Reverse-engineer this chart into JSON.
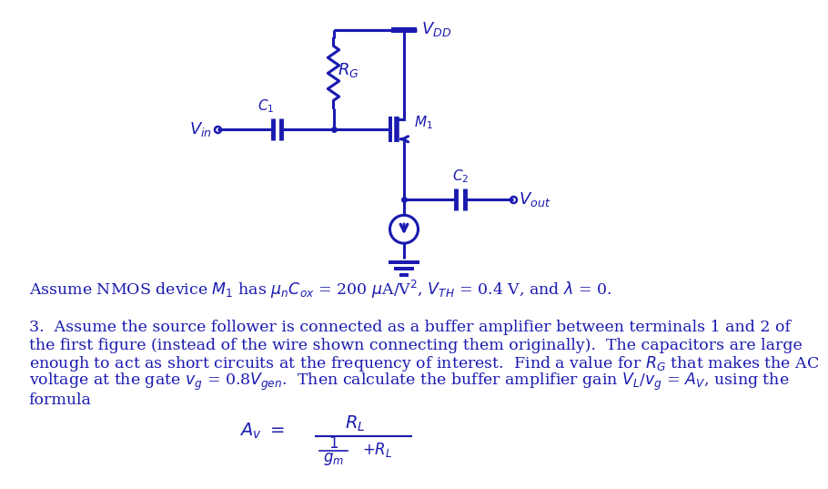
{
  "bg_color": "#ffffff",
  "circuit_color": "#1a1ab0",
  "body_text_color": "#1a1ab0",
  "fig_width": 9.21,
  "fig_height": 6.72,
  "assume_line": "Assume NMOS device $M_1$ has $\\mu_nC_{ox}$ = 200 $\\mu$A/V$^2$, $V_{TH}$ = 0.4 V, and $\\lambda$ = 0.",
  "p1": "3.  Assume the source follower is connected as a buffer amplifier between terminals 1 and 2 of",
  "p2": "the first figure (instead of the wire shown connecting them originally).  The capacitors are large",
  "p3": "enough to act as short circuits at the frequency of interest.  Find a value for $R_G$ that makes the AC",
  "p4": "voltage at the gate $v_g$ = 0.8$V_{gen}$.  Then calculate the buffer amplifier gain $V_L$/$v_g$ = $A_V$, using the",
  "p5": "formula"
}
